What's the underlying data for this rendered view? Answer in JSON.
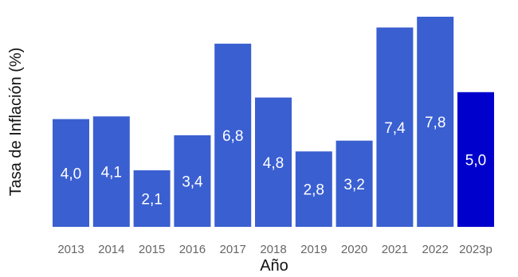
{
  "chart_data": {
    "type": "bar",
    "categories": [
      "2013",
      "2014",
      "2015",
      "2016",
      "2017",
      "2018",
      "2019",
      "2020",
      "2021",
      "2022",
      "2023p"
    ],
    "values": [
      4.0,
      4.1,
      2.1,
      3.4,
      6.8,
      4.8,
      2.8,
      3.2,
      7.4,
      7.8,
      5.0
    ],
    "value_labels": [
      "4,0",
      "4,1",
      "2,1",
      "3,4",
      "6,8",
      "4,8",
      "2,8",
      "3,2",
      "7,4",
      "7,8",
      "5,0"
    ],
    "xlabel": "Año",
    "ylabel": "Tasa de Inflación (%)",
    "ylim": [
      0,
      7.8
    ],
    "grid": false,
    "legend": "none",
    "colors": {
      "bar": "#3a5fd1",
      "highlight": "#0000cd",
      "highlight_category": "2023p"
    }
  }
}
